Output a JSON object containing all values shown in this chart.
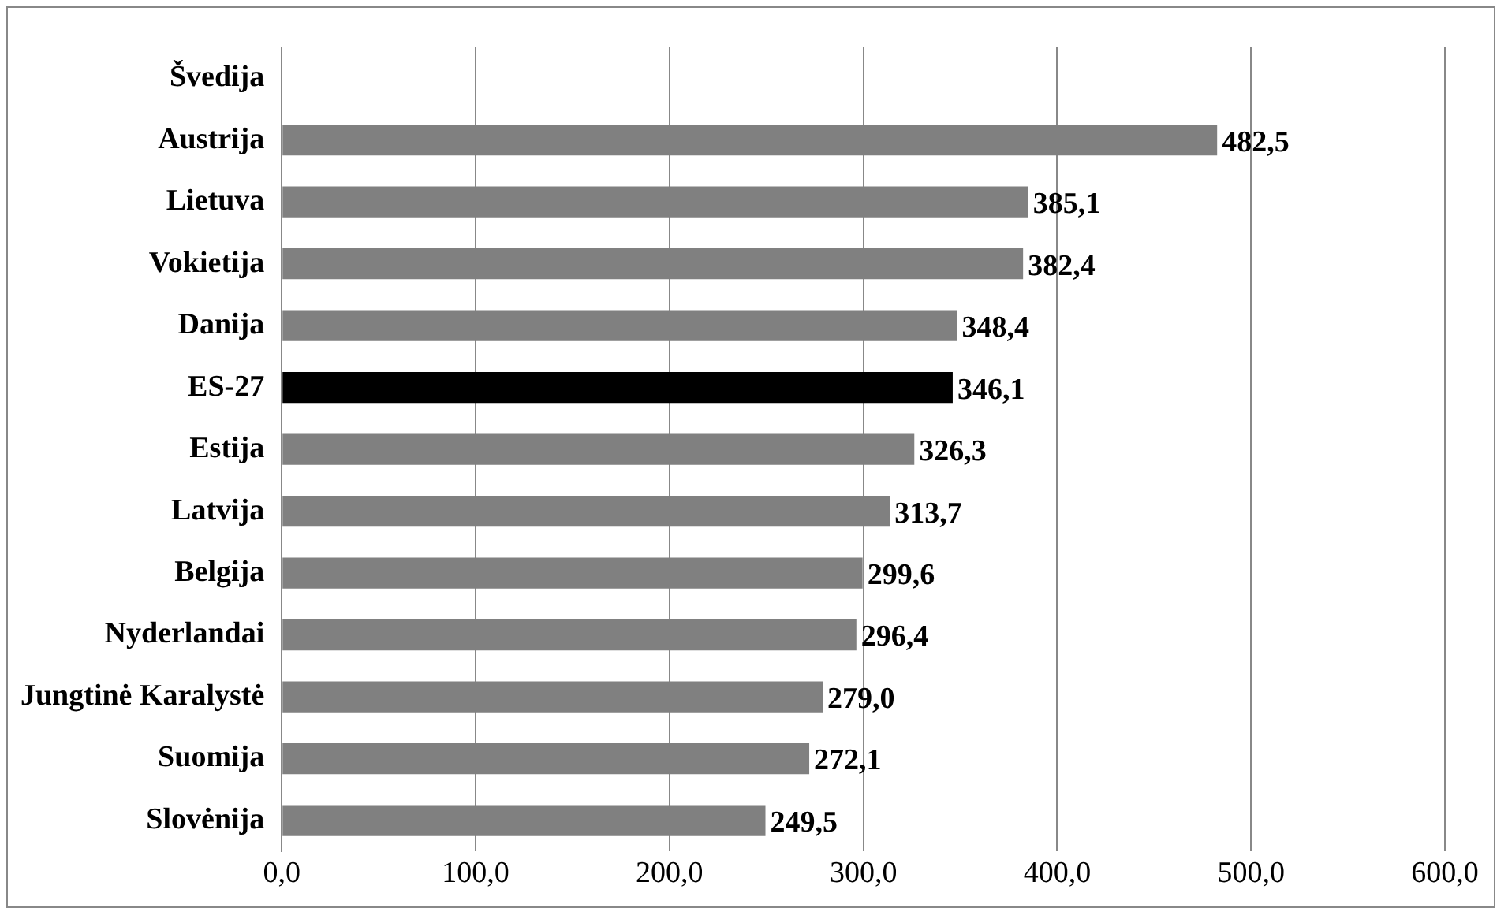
{
  "chart_data": {
    "type": "bar",
    "orientation": "horizontal",
    "categories": [
      "Švedija",
      "Austrija",
      "Lietuva",
      "Vokietija",
      "Danija",
      "ES-27",
      "Estija",
      "Latvija",
      "Belgija",
      "Nyderlandai",
      "Jungtinė Karalystė",
      "Suomija",
      "Slovėnija"
    ],
    "values": [
      null,
      482.5,
      385.1,
      382.4,
      348.4,
      346.1,
      326.3,
      313.7,
      299.6,
      296.4,
      279.0,
      272.1,
      249.5
    ],
    "colors": [
      "#808080",
      "#808080",
      "#808080",
      "#808080",
      "#808080",
      "#000000",
      "#808080",
      "#808080",
      "#808080",
      "#808080",
      "#808080",
      "#808080",
      "#808080"
    ],
    "value_labels": [
      null,
      "482,5",
      "385,1",
      "382,4",
      "348,4",
      "346,1",
      "326,3",
      "313,7",
      "299,6",
      "296,4",
      "279,0",
      "272,1",
      "249,5"
    ],
    "xlim": [
      0,
      600
    ],
    "xticks": [
      {
        "value": 0,
        "label": "0,0"
      },
      {
        "value": 100,
        "label": "100,0"
      },
      {
        "value": 200,
        "label": "200,0"
      },
      {
        "value": 300,
        "label": "300,0"
      },
      {
        "value": 400,
        "label": "400,0"
      },
      {
        "value": 500,
        "label": "500,0"
      },
      {
        "value": 600,
        "label": "600,0"
      }
    ],
    "grid": "x"
  }
}
